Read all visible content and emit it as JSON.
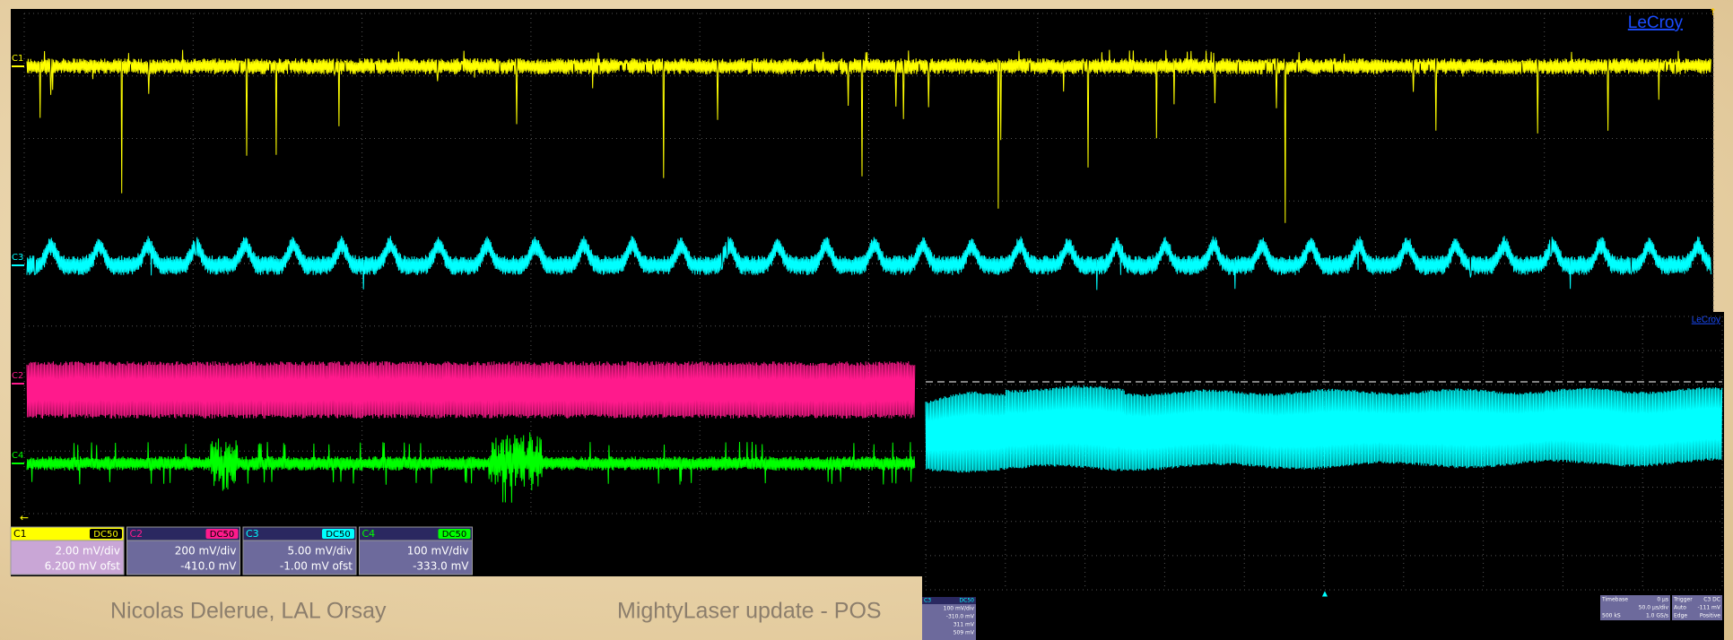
{
  "scope": {
    "brand": "LeCroy",
    "trace_labels": [
      "C1",
      "C3",
      "C2",
      "C4"
    ],
    "channels": [
      {
        "name": "C1",
        "coupling": "DC50",
        "scale": "2.00 mV/div",
        "offset": "6.200 mV ofst"
      },
      {
        "name": "C2",
        "coupling": "DC50",
        "scale": "200 mV/div",
        "offset": "-410.0 mV"
      },
      {
        "name": "C3",
        "coupling": "DC50",
        "scale": "5.00 mV/div",
        "offset": "-1.00 mV ofst"
      },
      {
        "name": "C4",
        "coupling": "DC50",
        "scale": "100 mV/div",
        "offset": "-333.0 mV"
      }
    ]
  },
  "inset": {
    "brand": "LeCroy",
    "channel": {
      "name": "C3",
      "coupling": "DC50",
      "lines": [
        "100 mV/div",
        "-310.0 mV",
        "311 mV",
        "509 mV"
      ]
    },
    "timebase": {
      "label": "Timebase",
      "delay": "0 µs",
      "div": "50.0 µs/div",
      "samples": "500 kS",
      "rate": "1.0 GS/s"
    },
    "trigger": {
      "label": "Trigger",
      "source": "C3 DC",
      "mode": "Auto",
      "level": "-111 mV",
      "type": "Edge",
      "slope": "Positive"
    }
  },
  "footer": {
    "author": "Nicolas Delerue, LAL Orsay",
    "title": "MightyLaser update - POS"
  }
}
